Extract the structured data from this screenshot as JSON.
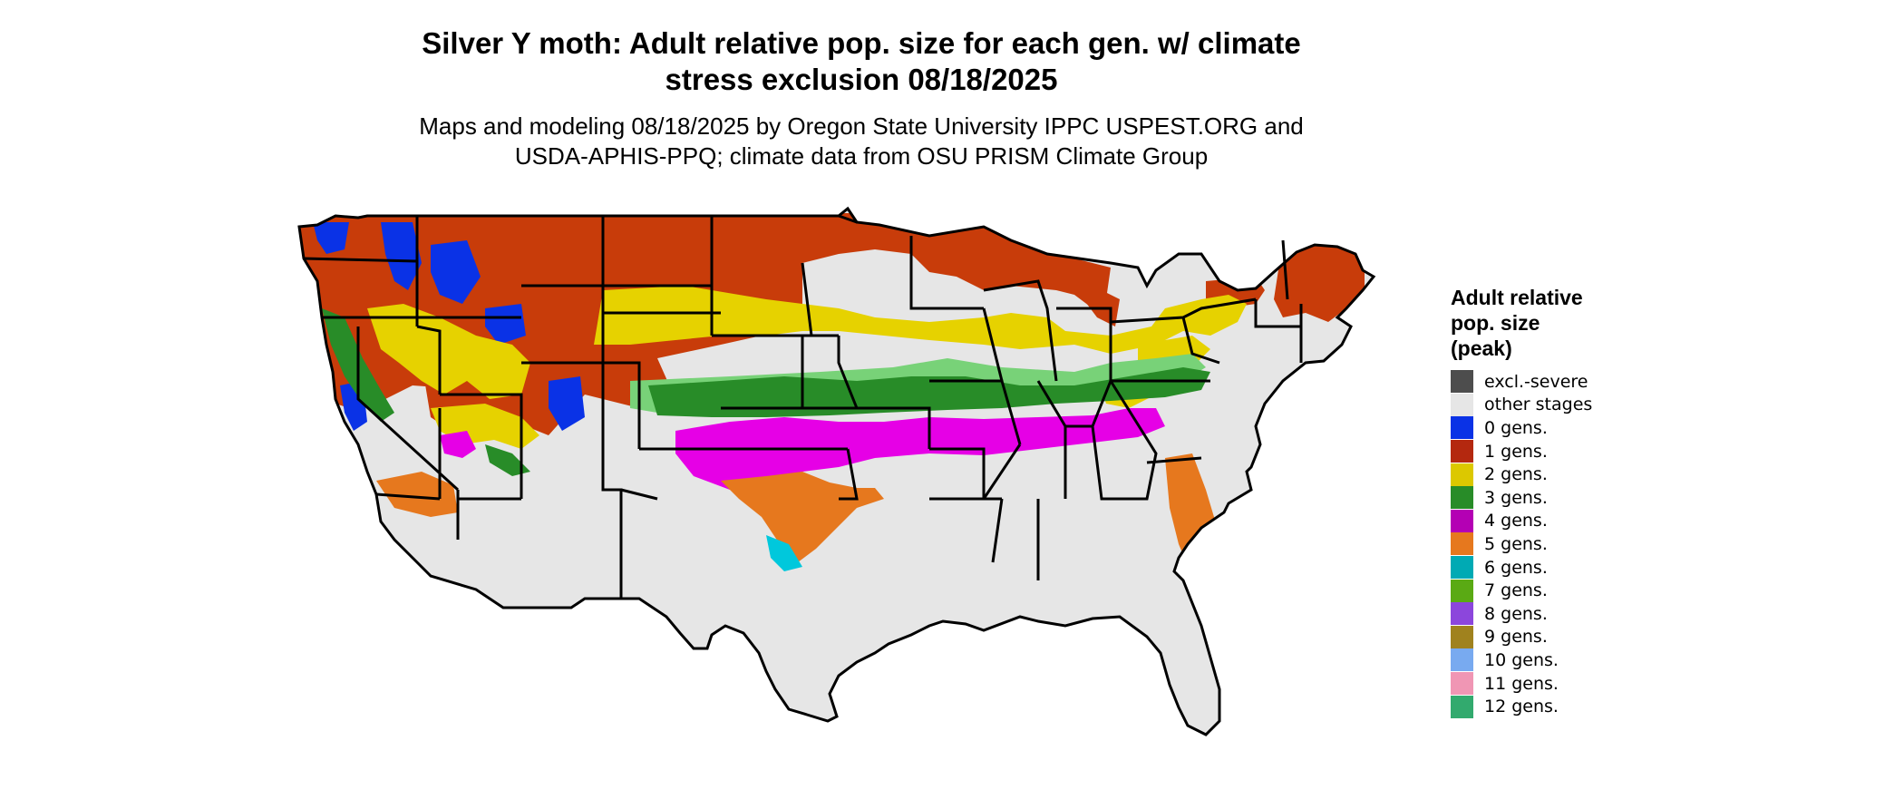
{
  "title_line1": "Silver Y moth: Adult relative pop. size for each gen. w/ climate",
  "title_line2": "stress exclusion 08/18/2025",
  "subtitle_line1": "Maps and modeling 08/18/2025 by Oregon State University IPPC USPEST.ORG and",
  "subtitle_line2": "USDA-APHIS-PPQ; climate data from OSU PRISM Climate Group",
  "legend": {
    "title_line1": "Adult relative",
    "title_line2": "pop. size",
    "title_line3": "(peak)",
    "items": [
      {
        "label": "excl.-severe",
        "color": "#4d4d4d"
      },
      {
        "label": "other stages",
        "color": "#e6e6e6"
      },
      {
        "label": "0 gens.",
        "color": "#0a32e6"
      },
      {
        "label": "1 gens.",
        "color": "#b4280f"
      },
      {
        "label": "2 gens.",
        "color": "#dcc800"
      },
      {
        "label": "3 gens.",
        "color": "#288c28"
      },
      {
        "label": "4 gens.",
        "color": "#b400b4"
      },
      {
        "label": "5 gens.",
        "color": "#e6781e"
      },
      {
        "label": "6 gens.",
        "color": "#00aab4"
      },
      {
        "label": "7 gens.",
        "color": "#5aaa14"
      },
      {
        "label": "8 gens.",
        "color": "#8c46dc"
      },
      {
        "label": "9 gens.",
        "color": "#a0821e"
      },
      {
        "label": "10 gens.",
        "color": "#78aaf0"
      },
      {
        "label": "11 gens.",
        "color": "#f096b4"
      },
      {
        "label": "12 gens.",
        "color": "#32aa6e"
      }
    ]
  },
  "map_colors": {
    "background": "#e6e6e6",
    "gen0": "#0a32e6",
    "gen1": "#c83c0a",
    "gen2": "#e6d200",
    "gen3": "#288c28",
    "gen3_light": "#78d278",
    "gen4": "#e600e6",
    "gen5": "#e6781e",
    "gen6": "#00c8dc",
    "border": "#000000"
  }
}
